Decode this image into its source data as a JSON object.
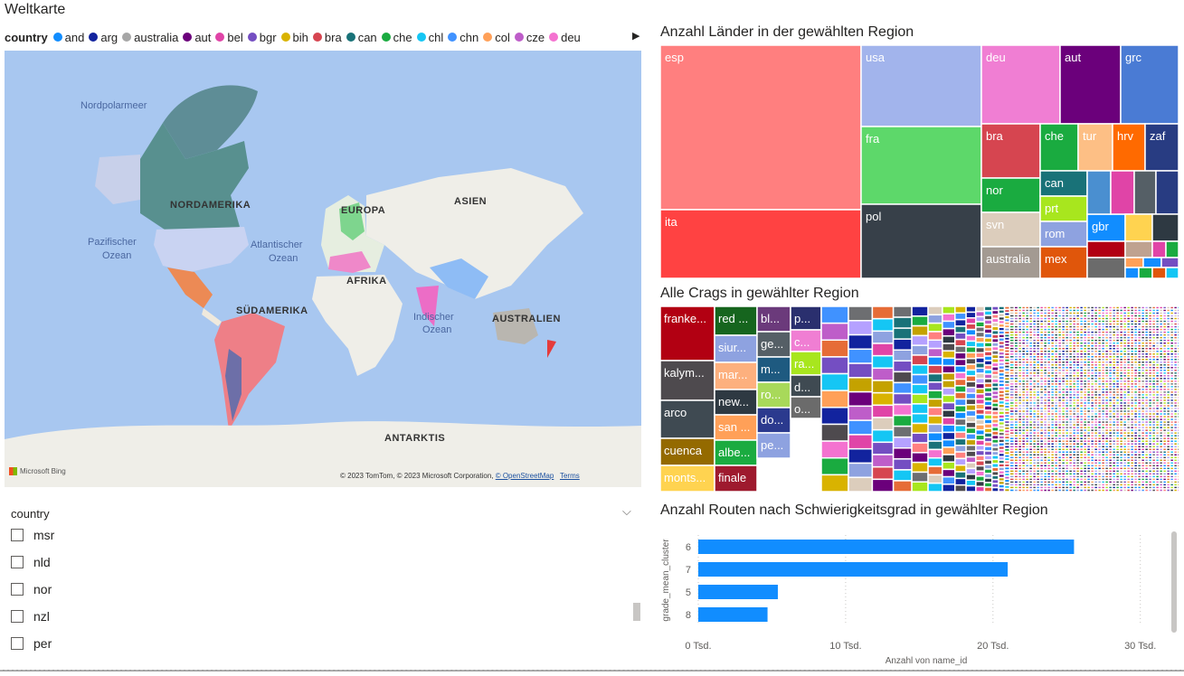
{
  "map": {
    "title": "Weltkarte",
    "legend_title": "country",
    "legend_items": [
      {
        "name": "and",
        "color": "#118DFF"
      },
      {
        "name": "arg",
        "color": "#12239E"
      },
      {
        "name": "australia",
        "color": "#A6A6A6"
      },
      {
        "name": "aut",
        "color": "#6B007B"
      },
      {
        "name": "bel",
        "color": "#E044A7"
      },
      {
        "name": "bgr",
        "color": "#744EC2"
      },
      {
        "name": "bih",
        "color": "#D9B300"
      },
      {
        "name": "bra",
        "color": "#D64550"
      },
      {
        "name": "can",
        "color": "#197278"
      },
      {
        "name": "che",
        "color": "#1AAB40"
      },
      {
        "name": "chl",
        "color": "#15C6F4"
      },
      {
        "name": "chn",
        "color": "#4092FF"
      },
      {
        "name": "col",
        "color": "#FFA058"
      },
      {
        "name": "cze",
        "color": "#BE5DC9"
      },
      {
        "name": "deu",
        "color": "#F472D0"
      }
    ],
    "labels": {
      "nordpolarmeer": "Nordpolarmeer",
      "nordamerika": "NORDAMERIKA",
      "europa": "EUROPA",
      "asien": "ASIEN",
      "pazifisch1": "Pazifischer",
      "pazifisch2": "Ozean",
      "atlantisch1": "Atlantischer",
      "atlantisch2": "Ozean",
      "afrika": "AFRIKA",
      "suedamerika": "SÜDAMERIKA",
      "indisch1": "Indischer",
      "indisch2": "Ozean",
      "australien": "AUSTRALIEN",
      "antarktis": "ANTARKTIS"
    },
    "bing": "Microsoft Bing",
    "attribution": "© 2023 TomTom, © 2023 Microsoft Corporation, ",
    "osm": "© OpenStreetMap",
    "terms": "Terms"
  },
  "slicer": {
    "header": "country",
    "items": [
      "msr",
      "nld",
      "nor",
      "nzl",
      "per"
    ]
  },
  "treemap_countries": {
    "title": "Anzahl Länder in der gewählten Region",
    "tiles": [
      {
        "label": "esp",
        "color": "#FF7F7F"
      },
      {
        "label": "ita",
        "color": "#FF4242"
      },
      {
        "label": "usa",
        "color": "#A2B4EC"
      },
      {
        "label": "fra",
        "color": "#5DD86A"
      },
      {
        "label": "pol",
        "color": "#374049"
      },
      {
        "label": "deu",
        "color": "#F07ED3"
      },
      {
        "label": "aut",
        "color": "#6B007B"
      },
      {
        "label": "grc",
        "color": "#4A7BD4"
      },
      {
        "label": "bra",
        "color": "#D64550"
      },
      {
        "label": "che",
        "color": "#1AAB40"
      },
      {
        "label": "tur",
        "color": "#FDBF85"
      },
      {
        "label": "hrv",
        "color": "#FF6A00"
      },
      {
        "label": "zaf",
        "color": "#283C82"
      },
      {
        "label": "nor",
        "color": "#1AAB40"
      },
      {
        "label": "can",
        "color": "#197278"
      },
      {
        "label": "svn",
        "color": "#DCCDBC"
      },
      {
        "label": "prt",
        "color": "#A8E61E"
      },
      {
        "label": "rom",
        "color": "#8EA2E0"
      },
      {
        "label": "gbr",
        "color": "#118DFF"
      },
      {
        "label": "australia",
        "color": "#A39A92"
      },
      {
        "label": "mex",
        "color": "#E0560B"
      }
    ]
  },
  "treemap_crags": {
    "title": "Alle Crags in gewählter Region",
    "tiles": [
      {
        "label": "franke...",
        "color": "#B20012"
      },
      {
        "label": "kalym...",
        "color": "#4E4A4E"
      },
      {
        "label": "arco",
        "color": "#3F4A52"
      },
      {
        "label": "cuenca",
        "color": "#946A00"
      },
      {
        "label": "monts...",
        "color": "#FFD350"
      },
      {
        "label": "red ...",
        "color": "#16651E"
      },
      {
        "label": "siur...",
        "color": "#8EA2E0"
      },
      {
        "label": "mar...",
        "color": "#FDB07E"
      },
      {
        "label": "new...",
        "color": "#2E3942"
      },
      {
        "label": "san ...",
        "color": "#FFA058"
      },
      {
        "label": "albe...",
        "color": "#1AAB40"
      },
      {
        "label": "finale",
        "color": "#9E1A2E"
      },
      {
        "label": "bl...",
        "color": "#6B3A7B"
      },
      {
        "label": "ge...",
        "color": "#555F66"
      },
      {
        "label": "m...",
        "color": "#1E5A80"
      },
      {
        "label": "ro...",
        "color": "#A8D95A"
      },
      {
        "label": "do...",
        "color": "#2B3A8E"
      },
      {
        "label": "pe...",
        "color": "#8EA2E0"
      },
      {
        "label": "p...",
        "color": "#2A2F6E"
      },
      {
        "label": "c...",
        "color": "#F07ED3"
      },
      {
        "label": "ra...",
        "color": "#A8E61E"
      },
      {
        "label": "d...",
        "color": "#3F4A52"
      },
      {
        "label": "o...",
        "color": "#6B6B6B"
      }
    ]
  },
  "bar_chart": {
    "title": "Anzahl Routen nach Schwierigkeitsgrad in gewählter Region",
    "chart_data": {
      "type": "bar",
      "orientation": "horizontal",
      "categories": [
        "6",
        "7",
        "5",
        "8"
      ],
      "values": [
        25500,
        21000,
        5400,
        4700
      ],
      "xlabel": "Anzahl von name_id",
      "ylabel": "grade_mean_cluster",
      "xlim": [
        0,
        31000
      ],
      "xticks": [
        "0 Tsd.",
        "10 Tsd.",
        "20 Tsd.",
        "30 Tsd."
      ],
      "xtick_values": [
        0,
        10000,
        20000,
        30000
      ],
      "grid": true,
      "bar_color": "#118DFF"
    }
  }
}
